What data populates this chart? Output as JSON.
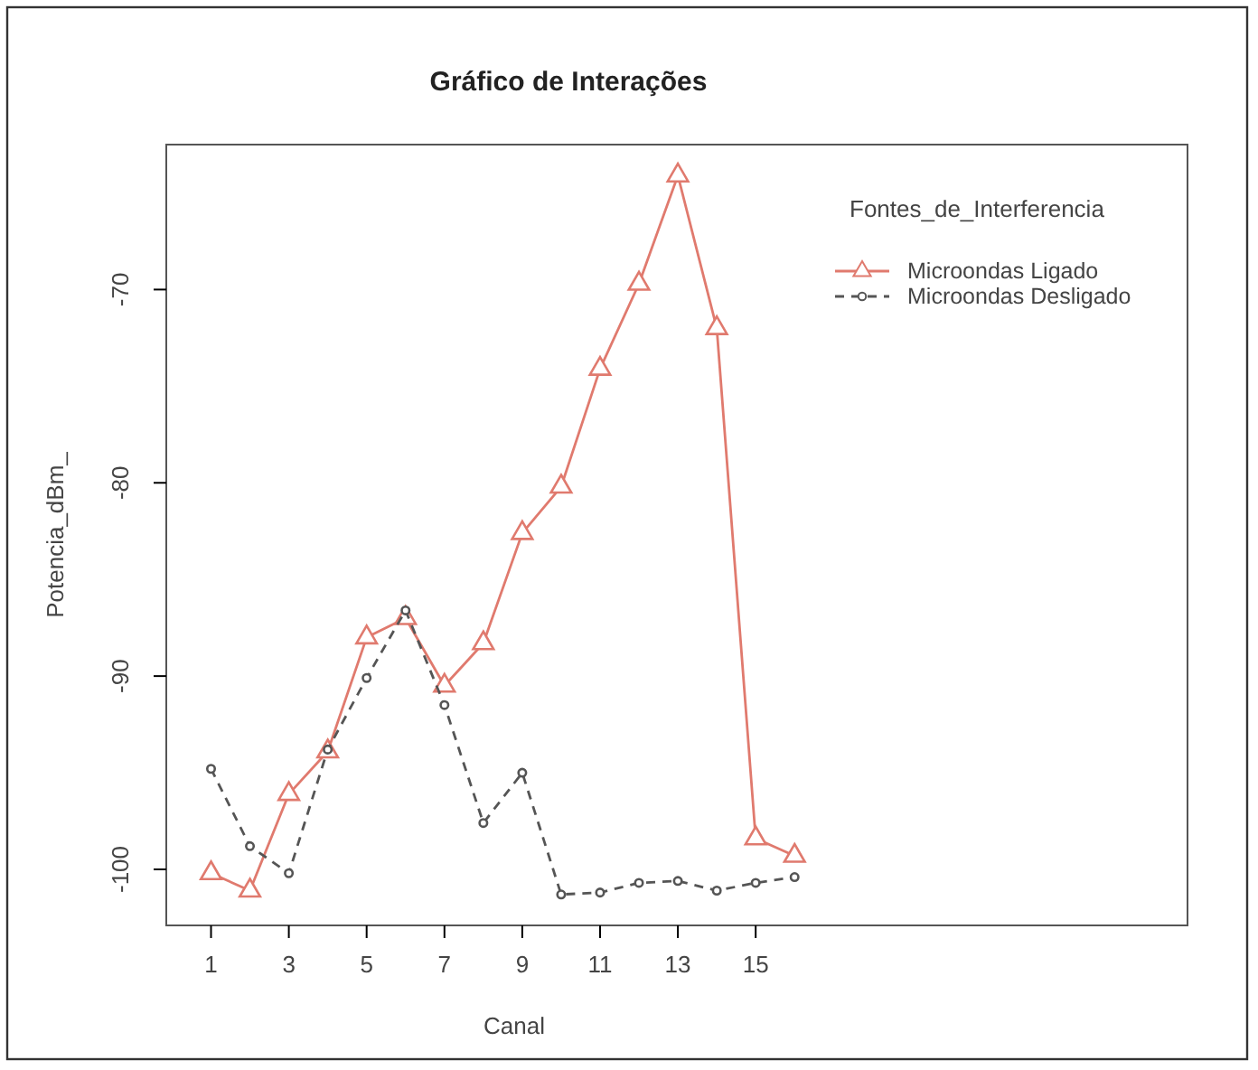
{
  "chart_data": {
    "type": "line",
    "title": "Gráfico de Interações",
    "xlabel": "Canal",
    "ylabel": "Potencia_dBm_",
    "legend_title": "Fontes_de_Interferencia",
    "legend": "top right",
    "x": [
      1,
      2,
      3,
      4,
      5,
      6,
      7,
      8,
      9,
      10,
      11,
      12,
      13,
      14,
      15,
      16
    ],
    "xlim": [
      -0.15,
      26.1
    ],
    "xticks": [
      1,
      3,
      5,
      7,
      9,
      11,
      13,
      15
    ],
    "ylim": [
      -102.9,
      -62.5
    ],
    "yticks": [
      -100,
      -90,
      -80,
      -70
    ],
    "grid": false,
    "series": [
      {
        "name": "Microondas Ligado",
        "color": "#e07a6e",
        "marker": "triangle",
        "line_style": "solid",
        "values": [
          -100.2,
          -101.1,
          -96.1,
          -93.9,
          -88.0,
          -87.0,
          -90.5,
          -88.3,
          -82.6,
          -80.2,
          -74.1,
          -69.7,
          -64.1,
          -72.0,
          -98.4,
          -99.3
        ]
      },
      {
        "name": "Microondas Desligado",
        "color": "#555555",
        "marker": "circle",
        "line_style": "dashed",
        "values": [
          -94.8,
          -98.8,
          -100.2,
          -93.8,
          -90.1,
          -86.6,
          -91.5,
          -97.6,
          -95.0,
          -101.3,
          -101.2,
          -100.7,
          -100.6,
          -101.1,
          -100.7,
          -100.4
        ]
      }
    ]
  }
}
